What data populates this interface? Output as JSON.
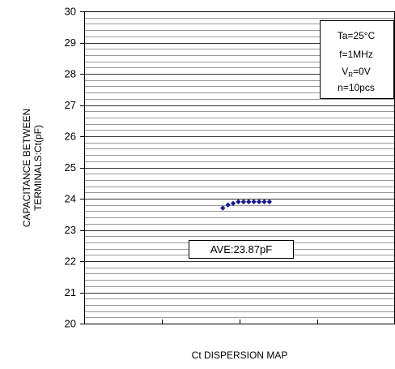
{
  "chart_data": {
    "type": "scatter",
    "title": "",
    "xlabel": "Ct DISPERSION MAP",
    "ylabel_lines": [
      "CAPACITANCE BETWEEN",
      "TERMINALS:Ct(pF)"
    ],
    "ylim": [
      20,
      30
    ],
    "y_ticks": [
      20,
      21,
      22,
      23,
      24,
      25,
      26,
      27,
      28,
      29,
      30
    ],
    "y_minor_step": 0.2,
    "x_divisions": 4,
    "grid": true,
    "conditions": {
      "position": "top-right",
      "ta": "Ta=25°C",
      "f": "f=1MHz",
      "vr_main": "V",
      "vr_sub": "R",
      "vr_value": "=0V",
      "n": "n=10pcs"
    },
    "average_box": {
      "label": "AVE:23.87pF",
      "value": 23.87
    },
    "series": [
      {
        "values": [
          23.7,
          23.8,
          23.85,
          23.9,
          23.9,
          23.9,
          23.9,
          23.9,
          23.9,
          23.9
        ]
      }
    ],
    "colors": {
      "points": "#1a1a8c",
      "grid": "#333333",
      "axis": "#000000"
    }
  }
}
